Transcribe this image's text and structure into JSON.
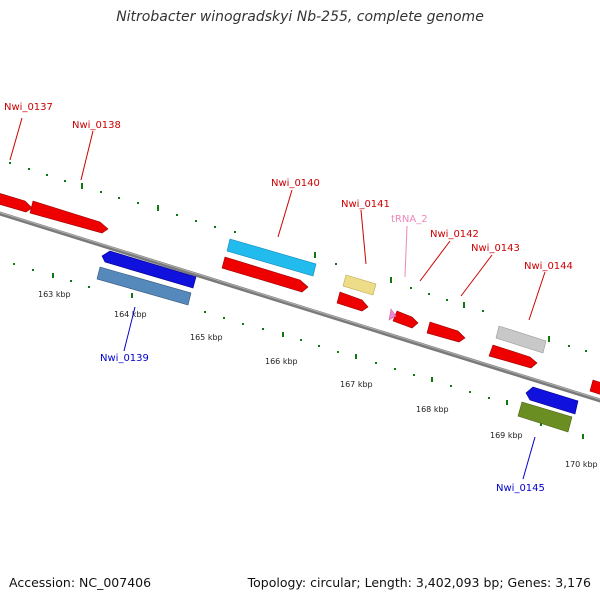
{
  "title": "Nitrobacter winogradskyi Nb-255, complete genome",
  "footer": {
    "accession": "Accession: NC_007406",
    "summary": "Topology: circular; Length: 3,402,093 bp; Genes: 3,176"
  },
  "colors": {
    "forward_gene": "#ee0000",
    "reverse_gene": "#0000cc",
    "trna": "#ee88bb",
    "backbone": "#808080",
    "tick": "#117711"
  },
  "scale_labels": [
    "163 kbp",
    "164 kbp",
    "165 kbp",
    "166 kbp",
    "167 kbp",
    "168 kbp",
    "169 kbp",
    "170 kbp"
  ],
  "gene_labels": [
    {
      "text": "Nwi_0137",
      "strand": "forward"
    },
    {
      "text": "Nwi_0138",
      "strand": "forward"
    },
    {
      "text": "Nwi_0140",
      "strand": "forward"
    },
    {
      "text": "Nwi_0141",
      "strand": "forward"
    },
    {
      "text": "tRNA_2",
      "strand": "trna"
    },
    {
      "text": "Nwi_0142",
      "strand": "forward"
    },
    {
      "text": "Nwi_0143",
      "strand": "forward"
    },
    {
      "text": "Nwi_0144",
      "strand": "forward"
    },
    {
      "text": "Nwi_0139",
      "strand": "reverse"
    },
    {
      "text": "Nwi_0145",
      "strand": "reverse"
    }
  ]
}
